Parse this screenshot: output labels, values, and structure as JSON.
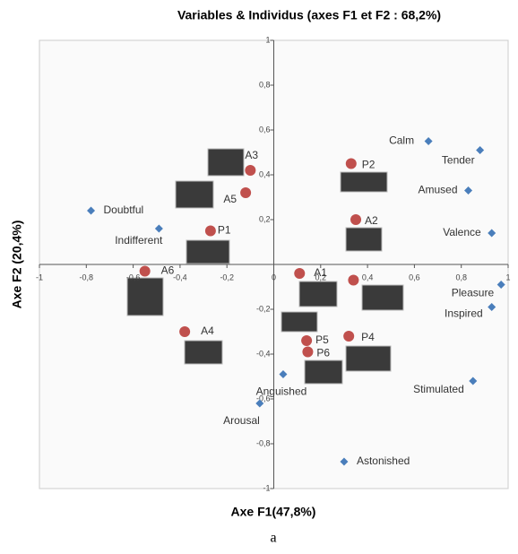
{
  "chart_data": {
    "type": "scatter",
    "title": "Variables & Individus (axes F1 et F2 : 68,2%)",
    "xlabel": "Axe F1(47,8%)",
    "ylabel": "Axe F2 (20,4%)",
    "xlim": [
      -1,
      1
    ],
    "ylim": [
      -1,
      1
    ],
    "xticks": [
      -1,
      {
        "value": -0.8,
        "label": "-0,8"
      },
      {
        "value": -0.6,
        "label": "-0,6"
      },
      {
        "value": -0.4,
        "label": "-0,4"
      },
      {
        "value": -0.2,
        "label": "-0,2"
      },
      0,
      {
        "value": 0.2,
        "label": "0,2"
      },
      {
        "value": 0.4,
        "label": "0,4"
      },
      {
        "value": 0.6,
        "label": "0,6"
      },
      {
        "value": 0.8,
        "label": "0,8"
      },
      1
    ],
    "yticks": [
      -1,
      {
        "value": -0.8,
        "label": "-0,8"
      },
      {
        "value": -0.6,
        "label": "-0,6"
      },
      {
        "value": -0.4,
        "label": "-0,4"
      },
      {
        "value": -0.2,
        "label": "-0,2"
      },
      0,
      {
        "value": 0.2,
        "label": "0,2"
      },
      {
        "value": 0.4,
        "label": "0,4"
      },
      {
        "value": 0.6,
        "label": "0,6"
      },
      {
        "value": 0.8,
        "label": "0,8"
      },
      1
    ],
    "series": [
      {
        "color": "#4a7ebb",
        "marker": "diamond",
        "labels": [
          "Calm",
          "Tender",
          "Amused",
          "Valence",
          "Pleasure",
          "Inspired",
          "Stimulated",
          "Astonished",
          "Anguished",
          "Arousal",
          "Doubtful",
          "Indifferent"
        ],
        "x": [
          0.66,
          0.88,
          0.83,
          0.93,
          0.97,
          0.93,
          0.85,
          0.3,
          0.04,
          -0.06,
          -0.78,
          -0.49
        ],
        "values": [
          0.55,
          0.51,
          0.33,
          0.14,
          -0.09,
          -0.19,
          -0.52,
          -0.88,
          -0.49,
          -0.62,
          0.24,
          0.16
        ]
      },
      {
        "color": "#c0504d",
        "marker": "circle",
        "labels": [
          "A3",
          "A5",
          "P1",
          "A6",
          "A4",
          "P2",
          "A2",
          "A1",
          null,
          "P4",
          "P5",
          "P6"
        ],
        "x": [
          -0.1,
          -0.12,
          -0.27,
          -0.55,
          -0.38,
          0.33,
          0.35,
          0.11,
          0.34,
          0.32,
          0.14,
          0.145
        ],
        "values": [
          0.42,
          0.32,
          0.15,
          -0.03,
          -0.3,
          0.45,
          0.2,
          -0.04,
          -0.07,
          -0.32,
          -0.34,
          -0.39
        ]
      }
    ]
  },
  "caption": "a"
}
